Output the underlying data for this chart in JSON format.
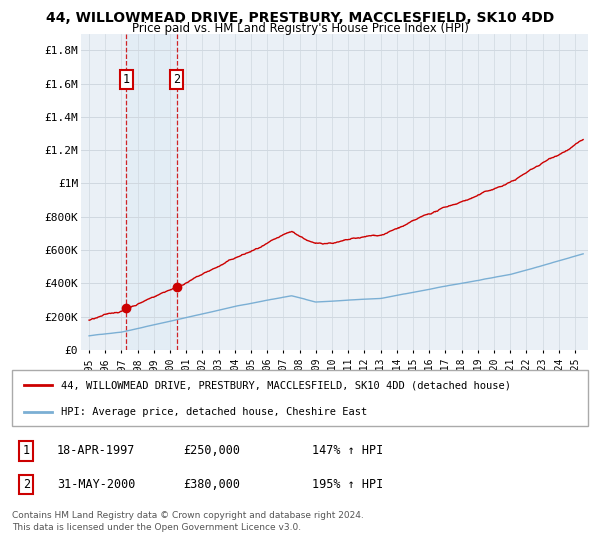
{
  "title": "44, WILLOWMEAD DRIVE, PRESTBURY, MACCLESFIELD, SK10 4DD",
  "subtitle": "Price paid vs. HM Land Registry's House Price Index (HPI)",
  "sale1_year": 1997.29,
  "sale2_year": 2000.42,
  "sale1_price": 250000,
  "sale2_price": 380000,
  "sale_labels": [
    "1",
    "2"
  ],
  "legend_line1": "44, WILLOWMEAD DRIVE, PRESTBURY, MACCLESFIELD, SK10 4DD (detached house)",
  "legend_line2": "HPI: Average price, detached house, Cheshire East",
  "table_rows": [
    {
      "num": "1",
      "date": "18-APR-1997",
      "price": "£250,000",
      "hpi": "147% ↑ HPI"
    },
    {
      "num": "2",
      "date": "31-MAY-2000",
      "price": "£380,000",
      "hpi": "195% ↑ HPI"
    }
  ],
  "footnote1": "Contains HM Land Registry data © Crown copyright and database right 2024.",
  "footnote2": "This data is licensed under the Open Government Licence v3.0.",
  "xmin": 1994.5,
  "xmax": 2025.8,
  "ymin": 0,
  "ymax": 1900000,
  "yticks": [
    0,
    200000,
    400000,
    600000,
    800000,
    1000000,
    1200000,
    1400000,
    1600000,
    1800000
  ],
  "ytick_labels": [
    "£0",
    "£200K",
    "£400K",
    "£600K",
    "£800K",
    "£1M",
    "£1.2M",
    "£1.4M",
    "£1.6M",
    "£1.8M"
  ],
  "sale_color": "#cc0000",
  "hpi_color": "#7bafd4",
  "shade_color": "#d8e8f5",
  "grid_color": "#d0d8e0",
  "bg_color": "#eaf0f6"
}
